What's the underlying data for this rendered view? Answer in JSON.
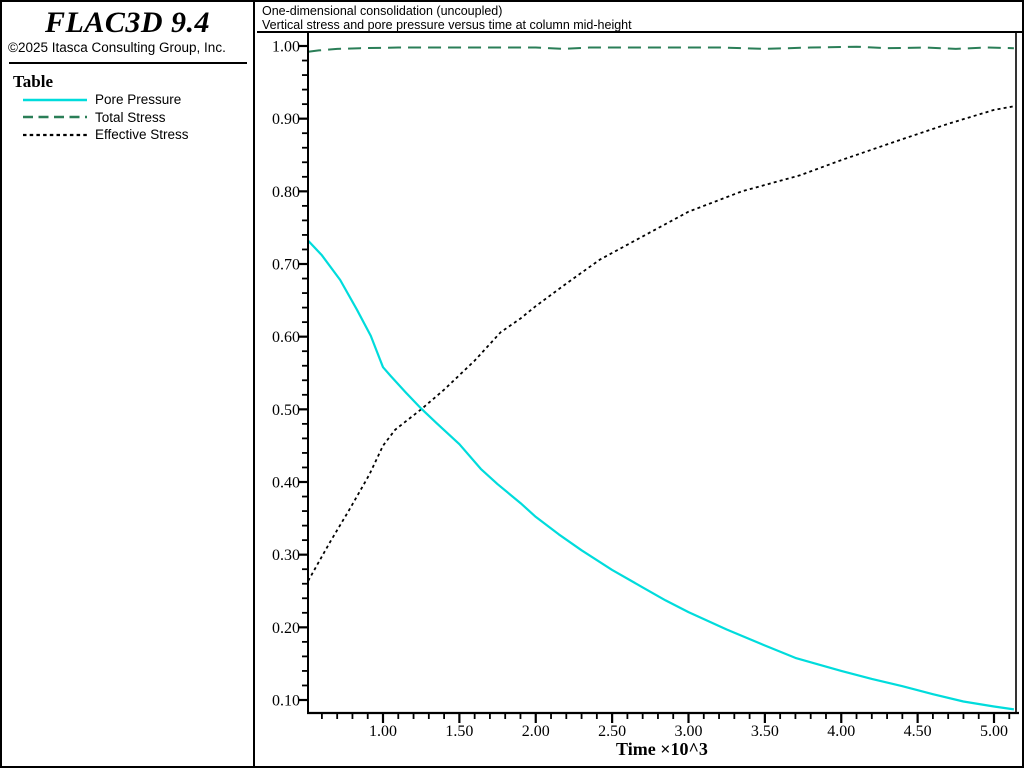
{
  "branding": {
    "logo": "FLAC3D 9.4",
    "copyright": "©2025 Itasca Consulting Group, Inc."
  },
  "legend": {
    "title": "Table",
    "items": [
      {
        "label": "Pore Pressure",
        "color": "#00dcdc",
        "dash": ""
      },
      {
        "label": "Total Stress",
        "color": "#2a7e57",
        "dash": "10 5.5"
      },
      {
        "label": "Effective Stress",
        "color": "#000000",
        "dash": "3.5 3.2"
      }
    ]
  },
  "chart_data": {
    "type": "line",
    "title": "One-dimensional consolidation (uncoupled)",
    "subtitle": "Vertical stress and pore pressure versus time at column mid-height",
    "xlabel": "Time ×10^3",
    "ylabel": "",
    "xlim": [
      0.509,
      5.144
    ],
    "ylim": [
      0.082,
      1.018
    ],
    "x_major_start": 1.0,
    "x_major_end": 5.0,
    "x_major_step": 0.5,
    "x_minor_step": 0.1,
    "y_major_start": 0.1,
    "y_major_end": 1.0,
    "y_major_step": 0.1,
    "y_minor_step": 0.02,
    "grid": false,
    "legend_position": "left",
    "axis_color": "#000000",
    "series": [
      {
        "name": "Total Stress",
        "color": "#2a7e57",
        "dash": "13 7",
        "width": 2,
        "points": [
          [
            0.51,
            0.992
          ],
          [
            0.58,
            0.994
          ],
          [
            0.7,
            0.996
          ],
          [
            0.85,
            0.997
          ],
          [
            1.1,
            0.998
          ],
          [
            1.4,
            0.998
          ],
          [
            1.7,
            0.998
          ],
          [
            2.0,
            0.998
          ],
          [
            2.18,
            0.996
          ],
          [
            2.35,
            0.998
          ],
          [
            2.6,
            0.998
          ],
          [
            2.9,
            0.998
          ],
          [
            3.2,
            0.998
          ],
          [
            3.5,
            0.996
          ],
          [
            3.8,
            0.998
          ],
          [
            4.1,
            0.999
          ],
          [
            4.3,
            0.997
          ],
          [
            4.55,
            0.998
          ],
          [
            4.75,
            0.996
          ],
          [
            4.95,
            0.998
          ],
          [
            5.13,
            0.997
          ]
        ]
      },
      {
        "name": "Effective Stress",
        "color": "#000000",
        "dash": "3 3.2",
        "width": 1.8,
        "points": [
          [
            0.51,
            0.264
          ],
          [
            0.65,
            0.316
          ],
          [
            0.78,
            0.362
          ],
          [
            0.91,
            0.41
          ],
          [
            1.0,
            0.45
          ],
          [
            1.08,
            0.472
          ],
          [
            1.25,
            0.5
          ],
          [
            1.4,
            0.527
          ],
          [
            1.6,
            0.567
          ],
          [
            1.77,
            0.606
          ],
          [
            1.9,
            0.625
          ],
          [
            2.0,
            0.642
          ],
          [
            2.2,
            0.673
          ],
          [
            2.42,
            0.706
          ],
          [
            2.7,
            0.738
          ],
          [
            3.0,
            0.772
          ],
          [
            3.35,
            0.8
          ],
          [
            3.73,
            0.822
          ],
          [
            4.0,
            0.843
          ],
          [
            4.39,
            0.871
          ],
          [
            4.7,
            0.893
          ],
          [
            5.0,
            0.912
          ],
          [
            5.13,
            0.917
          ]
        ]
      },
      {
        "name": "Pore Pressure",
        "color": "#00dcdc",
        "dash": "",
        "width": 2.2,
        "points": [
          [
            0.51,
            0.732
          ],
          [
            0.6,
            0.712
          ],
          [
            0.72,
            0.678
          ],
          [
            0.83,
            0.637
          ],
          [
            0.92,
            0.601
          ],
          [
            1.0,
            0.558
          ],
          [
            1.05,
            0.546
          ],
          [
            1.15,
            0.523
          ],
          [
            1.25,
            0.501
          ],
          [
            1.35,
            0.481
          ],
          [
            1.5,
            0.452
          ],
          [
            1.64,
            0.418
          ],
          [
            1.75,
            0.397
          ],
          [
            1.9,
            0.371
          ],
          [
            2.0,
            0.352
          ],
          [
            2.15,
            0.328
          ],
          [
            2.3,
            0.306
          ],
          [
            2.5,
            0.279
          ],
          [
            2.7,
            0.255
          ],
          [
            2.85,
            0.237
          ],
          [
            3.0,
            0.221
          ],
          [
            3.25,
            0.197
          ],
          [
            3.5,
            0.175
          ],
          [
            3.7,
            0.158
          ],
          [
            3.85,
            0.149
          ],
          [
            4.0,
            0.14
          ],
          [
            4.2,
            0.129
          ],
          [
            4.4,
            0.119
          ],
          [
            4.6,
            0.108
          ],
          [
            4.8,
            0.098
          ],
          [
            5.0,
            0.091
          ],
          [
            5.13,
            0.087
          ]
        ]
      }
    ]
  }
}
